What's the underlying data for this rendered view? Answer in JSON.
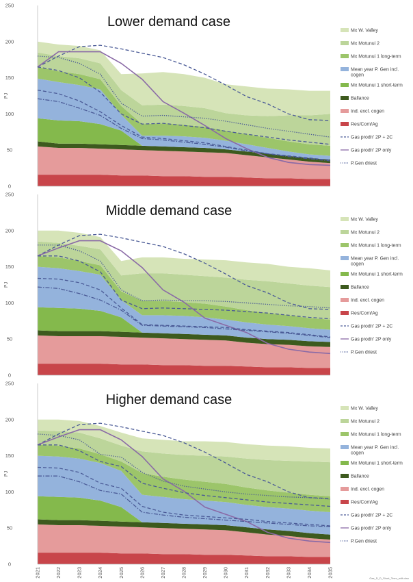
{
  "ylabel": "PJ",
  "footnote": "Gas_D_D_Short_Term_with.xlsx",
  "colors": {
    "mx_w_valley": "#d6e4b8",
    "mx_motunui_2": "#bcd59a",
    "mx_motunui_1_long": "#9cc56a",
    "mean_year_pgen": "#94b3dc",
    "mx_motunui_1_short": "#84b94c",
    "ballance": "#3d5a1e",
    "ind_excl_cogen": "#e59b9b",
    "res_com_ag": "#c8454a",
    "gas_2p_2c": "#4a5a96",
    "gas_2p_only": "#8a6aa6",
    "pgen_driest": "#4a5a96"
  },
  "chart_data": [
    {
      "type": "area",
      "title": "Lower demand case",
      "x": [
        "2021",
        "2022",
        "2023",
        "2024",
        "2025",
        "2026",
        "2027",
        "2028",
        "2029",
        "2030",
        "2031",
        "2032",
        "2033",
        "2034",
        "2035"
      ],
      "ylim": [
        0,
        250
      ],
      "yticks": [
        0,
        50,
        100,
        150,
        200,
        250
      ],
      "stack_series": [
        {
          "name": "Res/Com/Ag",
          "key": "res_com_ag",
          "values": [
            16,
            16,
            16,
            16,
            15,
            15,
            14,
            14,
            13,
            13,
            12,
            11,
            11,
            10,
            10
          ]
        },
        {
          "name": "Ind. excl. cogen",
          "key": "ind_excl_cogen",
          "values": [
            39,
            37,
            37,
            36,
            36,
            35,
            35,
            34,
            34,
            33,
            31,
            29,
            26,
            24,
            22
          ]
        },
        {
          "name": "Ballance",
          "key": "ballance",
          "values": [
            7,
            6,
            6,
            6,
            6,
            6,
            6,
            6,
            6,
            5,
            5,
            5,
            5,
            5,
            5
          ]
        },
        {
          "name": "Mx Motunui 1 short-term",
          "key": "mx_motunui_1_short",
          "values": [
            32,
            32,
            31,
            28,
            20,
            0,
            0,
            0,
            0,
            0,
            0,
            0,
            0,
            0,
            0
          ]
        },
        {
          "name": "Mean year P. Gen incl. cogen",
          "key": "mean_year_pgen",
          "values": [
            55,
            53,
            50,
            48,
            22,
            14,
            15,
            15,
            14,
            12,
            10,
            8,
            6,
            5,
            5
          ]
        },
        {
          "name": "Mx Motunui 1 long-term",
          "key": "mx_motunui_1_long",
          "values": [
            16,
            15,
            15,
            14,
            12,
            16,
            17,
            16,
            15,
            14,
            14,
            14,
            14,
            14,
            14
          ]
        },
        {
          "name": "Mx Motunui 2",
          "key": "mx_motunui_2",
          "values": [
            20,
            21,
            22,
            22,
            22,
            26,
            26,
            26,
            26,
            24,
            26,
            30,
            36,
            40,
            44
          ]
        },
        {
          "name": "Mx W. Valley",
          "key": "mx_w_valley",
          "values": [
            15,
            16,
            17,
            18,
            22,
            44,
            45,
            44,
            42,
            40,
            40,
            38,
            36,
            34,
            32
          ]
        }
      ],
      "line_series": [
        {
          "name": "Gas prodn' 2P + 2C",
          "key": "gas_2p_2c",
          "style": "dashed",
          "values": [
            165,
            180,
            193,
            195,
            190,
            184,
            178,
            168,
            155,
            140,
            124,
            114,
            100,
            92,
            91
          ]
        },
        {
          "name": "Gas prodn' 2P only",
          "key": "gas_2p_only",
          "style": "solid",
          "values": [
            165,
            186,
            186,
            186,
            170,
            148,
            117,
            101,
            84,
            66,
            52,
            40,
            33,
            30,
            29
          ]
        },
        {
          "name": "P.Gen driest",
          "key": "pgen_driest",
          "style": "dotted",
          "values": [
            180,
            178,
            170,
            155,
            115,
            97,
            98,
            96,
            94,
            90,
            85,
            80,
            76,
            72,
            68
          ]
        },
        {
          "name": "mid-dash-high",
          "key": "gas_2p_2c",
          "style": "dashed",
          "legend": false,
          "values": [
            165,
            160,
            150,
            130,
            100,
            86,
            87,
            84,
            81,
            76,
            72,
            68,
            64,
            61,
            58
          ]
        },
        {
          "name": "mid-dash-low",
          "key": "gas_2p_2c",
          "style": "dashed",
          "legend": false,
          "values": [
            133,
            128,
            118,
            103,
            84,
            68,
            66,
            63,
            60,
            55,
            50,
            45,
            42,
            39,
            36
          ]
        },
        {
          "name": "mid-dashdot",
          "key": "gas_2p_2c",
          "style": "dashdot",
          "legend": false,
          "values": [
            121,
            117,
            108,
            98,
            80,
            66,
            64,
            61,
            58,
            54,
            49,
            45,
            41,
            38,
            35
          ]
        }
      ],
      "legend": [
        "Mx W. Valley",
        "Mx Motunui 2",
        "Mx Motunui 1 long-term",
        "Mean year P. Gen incl. cogen",
        "Mx Motunui 1 short-term",
        "Ballance",
        "Ind. excl. cogen",
        "Res/Com/Ag",
        "Gas prodn' 2P + 2C",
        "Gas prodn' 2P only",
        "P.Gen driest"
      ]
    },
    {
      "type": "area",
      "title": "Middle demand case",
      "x": [
        "2021",
        "2022",
        "2023",
        "2024",
        "2025",
        "2026",
        "2027",
        "2028",
        "2029",
        "2030",
        "2031",
        "2032",
        "2033",
        "2034",
        "2035"
      ],
      "ylim": [
        0,
        250
      ],
      "yticks": [
        0,
        50,
        100,
        150,
        200,
        250
      ],
      "stack_series": [
        {
          "name": "Res/Com/Ag",
          "key": "res_com_ag",
          "values": [
            16,
            16,
            16,
            16,
            15,
            15,
            14,
            14,
            13,
            13,
            12,
            11,
            11,
            10,
            10
          ]
        },
        {
          "name": "Ind. excl. cogen",
          "key": "ind_excl_cogen",
          "values": [
            39,
            38,
            38,
            38,
            38,
            37,
            37,
            36,
            36,
            35,
            33,
            32,
            31,
            30,
            29
          ]
        },
        {
          "name": "Ballance",
          "key": "ballance",
          "values": [
            7,
            7,
            7,
            7,
            7,
            7,
            7,
            7,
            7,
            7,
            7,
            7,
            7,
            7,
            7
          ]
        },
        {
          "name": "Mx Motunui 1 short-term",
          "key": "mx_motunui_1_short",
          "values": [
            32,
            32,
            31,
            28,
            20,
            0,
            0,
            0,
            0,
            0,
            0,
            0,
            0,
            0,
            0
          ]
        },
        {
          "name": "Mean year P. Gen incl. cogen",
          "key": "mean_year_pgen",
          "values": [
            56,
            55,
            52,
            50,
            24,
            24,
            25,
            25,
            24,
            22,
            21,
            20,
            19,
            18,
            17
          ]
        },
        {
          "name": "Mx Motunui 1 long-term",
          "key": "mx_motunui_1_long",
          "values": [
            15,
            15,
            14,
            13,
            12,
            20,
            20,
            19,
            19,
            18,
            17,
            16,
            15,
            14,
            14
          ]
        },
        {
          "name": "Mx Motunui 2",
          "key": "mx_motunui_2",
          "values": [
            20,
            20,
            21,
            22,
            22,
            38,
            38,
            38,
            38,
            40,
            42,
            44,
            44,
            45,
            45
          ]
        },
        {
          "name": "Mx W. Valley",
          "key": "mx_w_valley",
          "values": [
            15,
            17,
            18,
            17,
            20,
            22,
            22,
            22,
            23,
            24,
            24,
            24,
            23,
            24,
            23
          ]
        }
      ],
      "line_series": [
        {
          "name": "Gas prodn' 2P + 2C",
          "key": "gas_2p_2c",
          "style": "dashed",
          "values": [
            165,
            180,
            193,
            195,
            190,
            184,
            178,
            168,
            155,
            140,
            124,
            114,
            100,
            92,
            91
          ]
        },
        {
          "name": "Gas prodn' 2P only",
          "key": "gas_2p_only",
          "style": "solid",
          "values": [
            165,
            176,
            186,
            186,
            172,
            149,
            118,
            101,
            79,
            69,
            59,
            44,
            36,
            32,
            30
          ]
        },
        {
          "name": "P.Gen driest",
          "key": "pgen_driest",
          "style": "dotted",
          "values": [
            180,
            180,
            172,
            158,
            118,
            103,
            104,
            103,
            103,
            102,
            100,
            98,
            96,
            95,
            93
          ]
        },
        {
          "name": "mid-dash-high",
          "key": "gas_2p_2c",
          "style": "dashed",
          "legend": false,
          "values": [
            165,
            165,
            158,
            143,
            104,
            92,
            93,
            92,
            91,
            90,
            88,
            86,
            83,
            80,
            78
          ]
        },
        {
          "name": "mid-dash-low",
          "key": "gas_2p_2c",
          "style": "dashed",
          "legend": false,
          "values": [
            134,
            133,
            128,
            118,
            93,
            70,
            69,
            68,
            67,
            66,
            63,
            61,
            59,
            56,
            53
          ]
        },
        {
          "name": "mid-dashdot",
          "key": "gas_2p_2c",
          "style": "dashdot",
          "legend": false,
          "values": [
            122,
            120,
            113,
            104,
            90,
            69,
            68,
            67,
            66,
            64,
            62,
            60,
            58,
            55,
            52
          ]
        }
      ],
      "legend": [
        "Mx W. Valley",
        "Mx Motunui 2",
        "Mx Motunui 1 long-term",
        "Mean year P. Gen incl. cogen",
        "Mx Motunui 1 short-term",
        "Ballance",
        "Ind. excl. cogen",
        "Res/Com/Ag",
        "Gas prodn' 2P + 2C",
        "Gas prodn' 2P only",
        "P.Gen driest"
      ]
    },
    {
      "type": "area",
      "title": "Higher demand case",
      "x": [
        "2021",
        "2022",
        "2023",
        "2024",
        "2025",
        "2026",
        "2027",
        "2028",
        "2029",
        "2030",
        "2031",
        "2032",
        "2033",
        "2034",
        "2035"
      ],
      "ylim": [
        0,
        250
      ],
      "yticks": [
        0,
        50,
        100,
        150,
        200,
        250
      ],
      "stack_series": [
        {
          "name": "Res/Com/Ag",
          "key": "res_com_ag",
          "values": [
            16,
            16,
            16,
            16,
            15,
            15,
            14,
            14,
            13,
            13,
            12,
            11,
            11,
            10,
            10
          ]
        },
        {
          "name": "Ind. excl. cogen",
          "key": "ind_excl_cogen",
          "values": [
            39,
            38,
            38,
            37,
            37,
            36,
            36,
            35,
            35,
            34,
            32,
            30,
            28,
            26,
            24
          ]
        },
        {
          "name": "Ballance",
          "key": "ballance",
          "values": [
            7,
            7,
            7,
            7,
            7,
            7,
            7,
            7,
            7,
            7,
            7,
            7,
            7,
            7,
            7
          ]
        },
        {
          "name": "Mx Motunui 1 short-term",
          "key": "mx_motunui_1_short",
          "values": [
            32,
            32,
            31,
            28,
            20,
            0,
            0,
            0,
            0,
            0,
            0,
            0,
            0,
            0,
            0
          ]
        },
        {
          "name": "Mean year P. Gen incl. cogen",
          "key": "mean_year_pgen",
          "values": [
            56,
            56,
            54,
            52,
            50,
            38,
            36,
            34,
            33,
            32,
            31,
            31,
            31,
            31,
            31
          ]
        },
        {
          "name": "Mx Motunui 1 long-term",
          "key": "mx_motunui_1_long",
          "values": [
            15,
            15,
            14,
            12,
            13,
            30,
            28,
            27,
            26,
            25,
            24,
            23,
            22,
            22,
            22
          ]
        },
        {
          "name": "Mx Motunui 2",
          "key": "mx_motunui_2",
          "values": [
            20,
            20,
            22,
            22,
            22,
            30,
            32,
            34,
            36,
            38,
            40,
            42,
            44,
            46,
            47
          ]
        },
        {
          "name": "Mx W. Valley",
          "key": "mx_w_valley",
          "values": [
            15,
            16,
            16,
            17,
            18,
            18,
            19,
            19,
            20,
            20,
            20,
            20,
            20,
            19,
            19
          ]
        }
      ],
      "line_series": [
        {
          "name": "Gas prodn' 2P + 2C",
          "key": "gas_2p_2c",
          "style": "dashed",
          "values": [
            165,
            180,
            193,
            195,
            190,
            184,
            178,
            168,
            155,
            140,
            124,
            114,
            100,
            92,
            91
          ]
        },
        {
          "name": "Gas prodn' 2P only",
          "key": "gas_2p_only",
          "style": "solid",
          "values": [
            165,
            176,
            186,
            186,
            172,
            149,
            118,
            101,
            79,
            69,
            59,
            44,
            36,
            32,
            30
          ]
        },
        {
          "name": "P.Gen driest",
          "key": "pgen_driest",
          "style": "dotted",
          "values": [
            180,
            178,
            172,
            152,
            148,
            127,
            115,
            108,
            104,
            100,
            97,
            95,
            93,
            92,
            90
          ]
        },
        {
          "name": "mid-dash-high",
          "key": "gas_2p_2c",
          "style": "dashed",
          "legend": false,
          "values": [
            165,
            165,
            157,
            142,
            135,
            112,
            105,
            99,
            95,
            92,
            89,
            86,
            84,
            82,
            80
          ]
        },
        {
          "name": "mid-dash-low",
          "key": "gas_2p_2c",
          "style": "dashed",
          "legend": false,
          "values": [
            134,
            133,
            127,
            112,
            105,
            80,
            72,
            68,
            66,
            64,
            62,
            59,
            57,
            55,
            53
          ]
        },
        {
          "name": "mid-dashdot",
          "key": "gas_2p_2c",
          "style": "dashdot",
          "legend": false,
          "values": [
            122,
            122,
            114,
            102,
            97,
            72,
            68,
            65,
            63,
            61,
            59,
            57,
            55,
            53,
            52
          ]
        }
      ],
      "legend": [
        "Mx W. Valley",
        "Mx Motunui 2",
        "Mx Motunui 1 long-term",
        "Mean year P. Gen incl. cogen",
        "Mx Motunui 1 short-term",
        "Ballance",
        "Ind. excl. cogen",
        "Res/Com/Ag",
        "Gas prodn' 2P + 2C",
        "Gas prodn' 2P only",
        "P.Gen driest"
      ]
    }
  ]
}
